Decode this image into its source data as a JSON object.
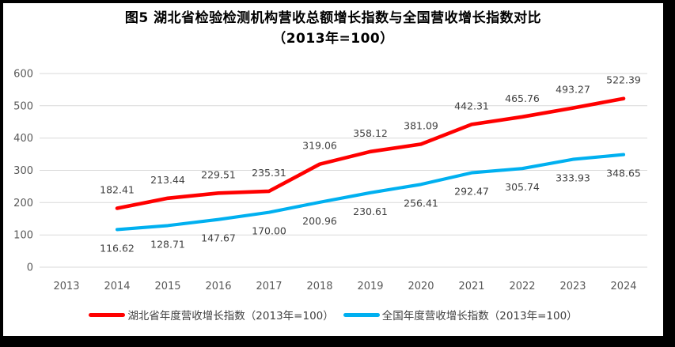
{
  "title": {
    "line1": "图5 湖北省检验检测机构营收总额增长指数与全国营收增长指数对比",
    "line2": "（2013年=100）"
  },
  "chart_data": {
    "type": "line",
    "title": "图5 湖北省检验检测机构营收总额增长指数与全国营收增长指数对比（2013年=100）",
    "categories": [
      "2013",
      "2014",
      "2015",
      "2016",
      "2017",
      "2018",
      "2019",
      "2020",
      "2021",
      "2022",
      "2023",
      "2024"
    ],
    "series": [
      {
        "key": "hubei",
        "name": "湖北省年度营收增长指数（2013年=100）",
        "color": "#FF0000",
        "label_position": "above",
        "values": [
          null,
          182.41,
          213.44,
          229.51,
          235.31,
          319.06,
          358.12,
          381.09,
          442.31,
          465.76,
          493.27,
          522.39
        ]
      },
      {
        "key": "national",
        "name": "全国年度营收增长指数（2013年=100）",
        "color": "#00B0F0",
        "label_position": "below",
        "values": [
          null,
          116.62,
          128.71,
          147.67,
          170.0,
          200.96,
          230.61,
          256.41,
          292.47,
          305.74,
          333.93,
          348.65
        ]
      }
    ],
    "ylim": [
      0,
      600
    ],
    "yticks": [
      0,
      100,
      200,
      300,
      400,
      500,
      600
    ],
    "grid": true,
    "legend_position": "bottom",
    "label_decimals": 2,
    "colors": {
      "gridline": "#D9D9D9",
      "axis_text": "#595959",
      "data_label": "#404040",
      "title_text": "#000000",
      "frame_border": "#000000",
      "background": "#FFFFFF"
    }
  }
}
